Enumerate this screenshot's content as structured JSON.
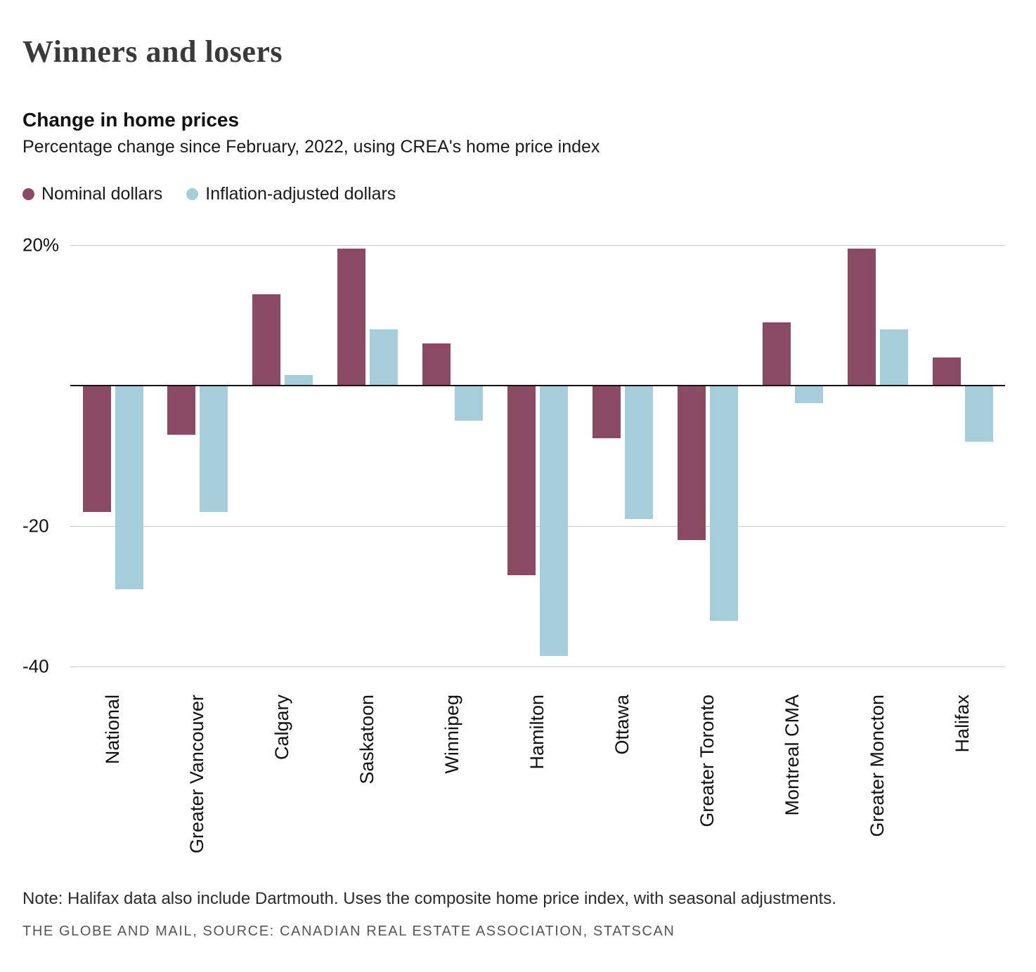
{
  "page_title": "Winners and losers",
  "chart_header": {
    "heading": "Change in home prices",
    "subheading": "Percentage change since February, 2022, using CREA's home price index"
  },
  "legend": [
    {
      "label": "Nominal dollars",
      "color": "#8b4a63"
    },
    {
      "label": "Inflation-adjusted dollars",
      "color": "#a5cdda"
    }
  ],
  "chart_data": {
    "type": "bar",
    "title": "Change in home prices",
    "xlabel": "",
    "ylabel": "Percentage change since February, 2022",
    "ylim": [
      -40,
      20
    ],
    "grid": true,
    "legend_position": "top",
    "categories": [
      "National",
      "Greater Vancouver",
      "Calgary",
      "Saskatoon",
      "Winnipeg",
      "Hamilton",
      "Ottawa",
      "Greater Toronto",
      "Montreal CMA",
      "Greater Moncton",
      "Halifax"
    ],
    "series": [
      {
        "name": "Nominal dollars",
        "color": "#8b4a63",
        "values": [
          -18,
          -7,
          13,
          19.5,
          6,
          -27,
          -7.5,
          -22,
          9,
          19.5,
          4
        ]
      },
      {
        "name": "Inflation-adjusted dollars",
        "color": "#a5cdda",
        "values": [
          -29,
          -18,
          1.5,
          8,
          -5,
          -38.5,
          -19,
          -33.5,
          -2.5,
          8,
          -8
        ]
      }
    ],
    "yticks": [
      {
        "value": 20,
        "label": "20%"
      },
      {
        "value": -20,
        "label": "-20"
      },
      {
        "value": -40,
        "label": "-40"
      }
    ]
  },
  "footer": {
    "note": "Note: Halifax data also include Dartmouth. Uses the composite home price index, with seasonal adjustments.",
    "credit": "THE GLOBE AND MAIL, SOURCE: CANADIAN REAL ESTATE ASSOCIATION, STATSCAN"
  }
}
